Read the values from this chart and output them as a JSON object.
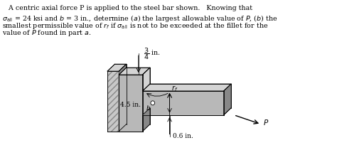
{
  "bg_color": "#ffffff",
  "text_color": "#000000",
  "text_lines": [
    "A centric axial force P is applied to the steel bar shown.   Knowing that",
    "σ_all = 24 ksi and b = 3 in., determine (a) the largest allowable value of P, (b) the",
    "smallest permissible value of r_f if σ_all is not to be exceeded at the fillet for the",
    "value of P found in part a."
  ],
  "gray_front": "#b8b8b8",
  "gray_top": "#d4d4d4",
  "gray_side": "#888888",
  "gray_wall_front": "#c8c8c8",
  "gray_wall_hatch": "#a0a0a0",
  "hatch_color": "#888888"
}
